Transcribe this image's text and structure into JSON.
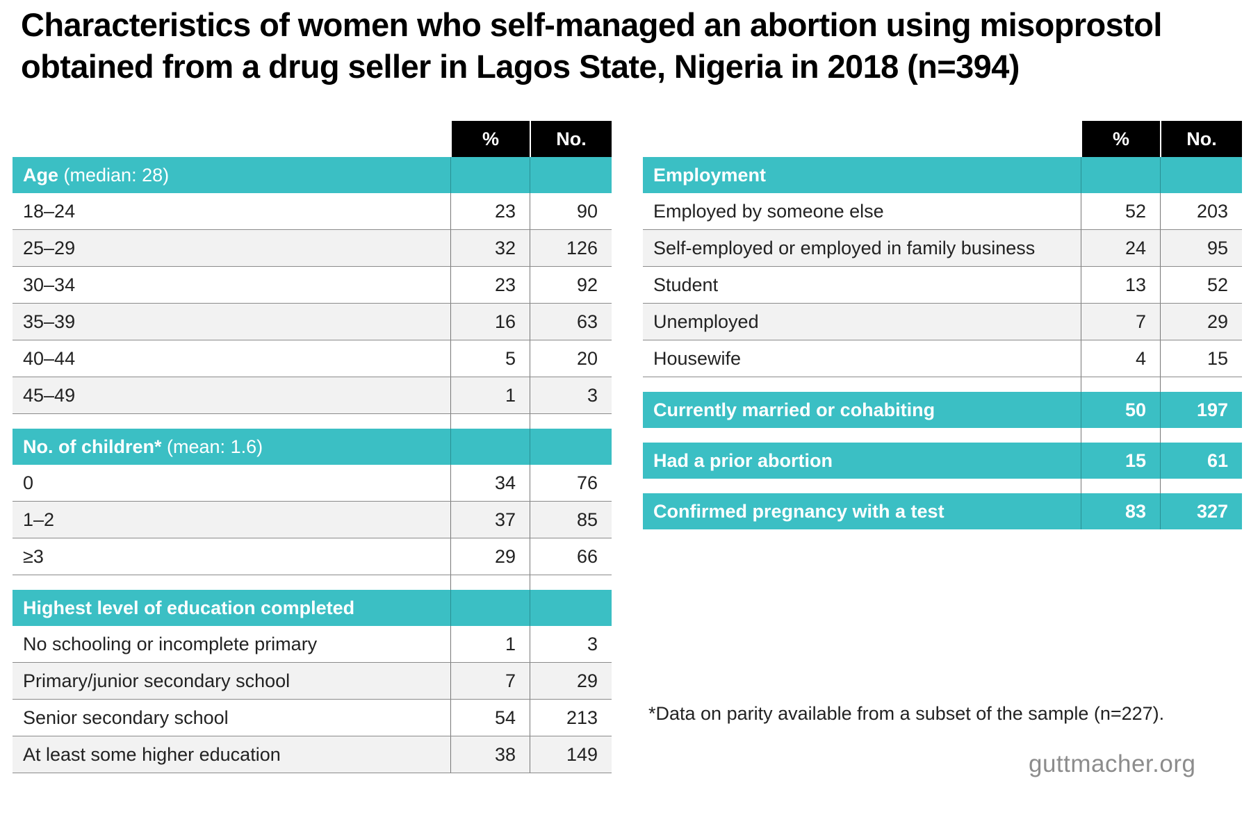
{
  "title_lines": [
    "Characteristics of women who self-managed an abortion using misoprostol",
    "obtained from a drug seller in Lagos State, Nigeria in 2018 (n=394)"
  ],
  "columns": {
    "pct": "%",
    "no": "No."
  },
  "chart_data": {
    "type": "table",
    "left": [
      {
        "section": "Age",
        "note": "(median: 28)",
        "rows": [
          {
            "label": "18–24",
            "pct": "23",
            "no": "90"
          },
          {
            "label": "25–29",
            "pct": "32",
            "no": "126"
          },
          {
            "label": "30–34",
            "pct": "23",
            "no": "92"
          },
          {
            "label": "35–39",
            "pct": "16",
            "no": "63"
          },
          {
            "label": "40–44",
            "pct": "5",
            "no": "20"
          },
          {
            "label": "45–49",
            "pct": "1",
            "no": "3"
          }
        ]
      },
      {
        "section": "No. of children*",
        "note": "(mean: 1.6)",
        "rows": [
          {
            "label": "0",
            "pct": "34",
            "no": "76"
          },
          {
            "label": "1–2",
            "pct": "37",
            "no": "85"
          },
          {
            "label": "≥3",
            "pct": "29",
            "no": "66"
          }
        ]
      },
      {
        "section": "Highest level of education completed",
        "note": "",
        "rows": [
          {
            "label": "No schooling or incomplete primary",
            "pct": "1",
            "no": "3"
          },
          {
            "label": "Primary/junior secondary school",
            "pct": "7",
            "no": "29"
          },
          {
            "label": "Senior secondary school",
            "pct": "54",
            "no": "213"
          },
          {
            "label": "At least some higher education",
            "pct": "38",
            "no": "149"
          }
        ]
      }
    ],
    "right": [
      {
        "section": "Employment",
        "note": "",
        "rows": [
          {
            "label": "Employed by someone else",
            "pct": "52",
            "no": "203"
          },
          {
            "label": "Self-employed or employed in family business",
            "pct": "24",
            "no": "95"
          },
          {
            "label": "Student",
            "pct": "13",
            "no": "52"
          },
          {
            "label": "Unemployed",
            "pct": "7",
            "no": "29"
          },
          {
            "label": "Housewife",
            "pct": "4",
            "no": "15"
          }
        ]
      },
      {
        "section": "Currently married or cohabiting",
        "note": "",
        "pct": "50",
        "no": "197",
        "rows": []
      },
      {
        "section": "Had a prior abortion",
        "note": "",
        "pct": "15",
        "no": "61",
        "rows": []
      },
      {
        "section": "Confirmed pregnancy with a test",
        "note": "",
        "pct": "83",
        "no": "327",
        "rows": []
      }
    ]
  },
  "footnote": "*Data on parity available from a subset of the sample (n=227).",
  "source": "guttmacher.org",
  "colors": {
    "teal": "#3bbfc4",
    "header": "#000000",
    "alt_row": "#f2f2f2"
  }
}
